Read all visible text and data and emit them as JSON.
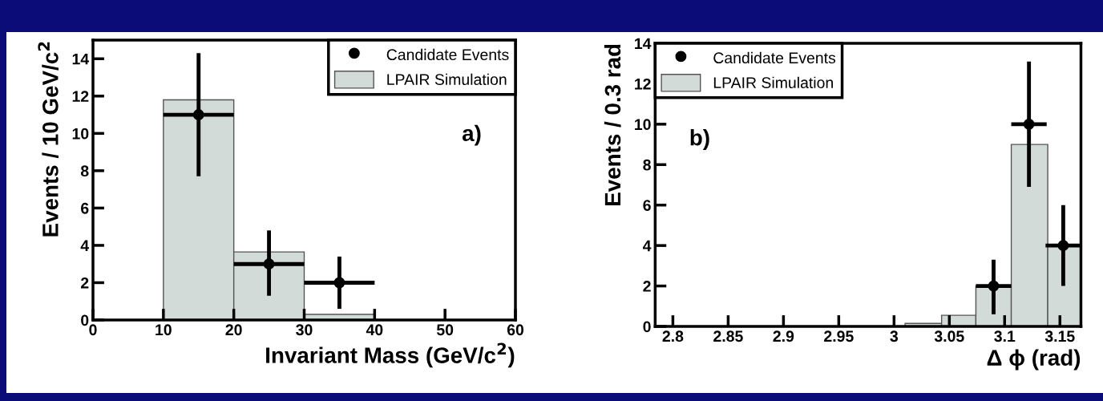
{
  "chart_data": [
    {
      "type": "histogram",
      "xlabel": "Invariant Mass (GeV/c$^{2}$)",
      "ylabel": "Events / 10 GeV/c$^{2}$",
      "xlim": [
        0,
        60
      ],
      "ylim": [
        0,
        15
      ],
      "xticks": [
        0,
        10,
        20,
        30,
        40,
        50,
        60
      ],
      "yticks": [
        0,
        2,
        4,
        6,
        8,
        10,
        12,
        14
      ],
      "legend": "top right",
      "grid": false,
      "annotations": [
        "a)"
      ],
      "series": [
        {
          "name": "LPAIR Simulation",
          "color": "#d3dbd9",
          "bins": [
            10,
            20,
            30,
            40
          ],
          "values": [
            11.8,
            3.65,
            0.3
          ]
        },
        {
          "type": "scatter",
          "name": "Candidate Events",
          "color": "#000000",
          "marker": "circle",
          "x": [
            15,
            25,
            35
          ],
          "values": [
            11,
            3,
            2
          ],
          "errors": [
            3.3,
            [
              1.3,
              4.8
            ],
            1.4
          ],
          "xerrors": [
            5,
            5,
            5
          ]
        }
      ]
    },
    {
      "type": "histogram",
      "xlabel": "Δ ϕ (rad)",
      "ylabel": "Events / 0.3 rad",
      "xlim": [
        2.784,
        3.169
      ],
      "ylim": [
        0,
        14
      ],
      "xticks": [
        2.8,
        2.85,
        2.9,
        2.95,
        3,
        3.05,
        3.1,
        3.15
      ],
      "yticks": [
        0,
        2,
        4,
        6,
        8,
        10,
        12,
        14
      ],
      "legend": "top left",
      "grid": false,
      "annotations": [
        "b)"
      ],
      "series": [
        {
          "name": "LPAIR Simulation",
          "color": "#d3dbd9",
          "bins": [
            3.01,
            3.043,
            3.074,
            3.106,
            3.139,
            3.169
          ],
          "values": [
            0.15,
            0.55,
            2,
            9,
            4
          ]
        },
        {
          "type": "scatter",
          "name": "Candidate Events",
          "color": "#000000",
          "marker": "circle",
          "x": [
            3.09,
            3.122,
            3.153
          ],
          "values": [
            2,
            10,
            4
          ],
          "errors": [
            [
              0.6,
              3.3
            ],
            3.1,
            2
          ],
          "xerrors": [
            0.016,
            0.016,
            0.016
          ]
        }
      ]
    }
  ]
}
